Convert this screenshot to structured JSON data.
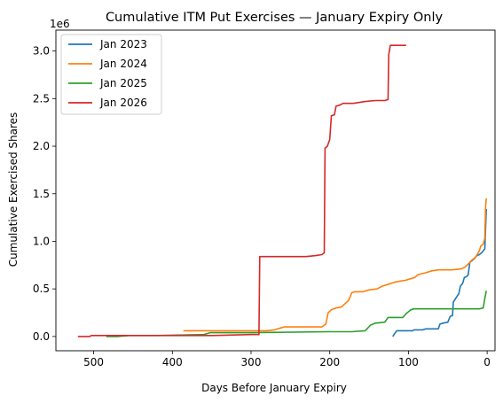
{
  "chart_data": {
    "type": "line",
    "title": "Cumulative ITM Put Exercises — January Expiry Only",
    "xlabel": "Days Before January Expiry",
    "ylabel": "Cumulative Exercised Shares",
    "offset_label": "1e6",
    "x_inverted": true,
    "xlim": [
      548,
      -10
    ],
    "ylim": [
      -0.15,
      3.22
    ],
    "y_multiplier": 1000000,
    "grid": false,
    "legend_position": "top-left",
    "x_ticks": [
      500,
      400,
      300,
      200,
      100,
      0
    ],
    "x_tick_labels": [
      "500",
      "400",
      "300",
      "200",
      "100",
      "0"
    ],
    "y_ticks": [
      0.0,
      0.5,
      1.0,
      1.5,
      2.0,
      2.5,
      3.0
    ],
    "y_tick_labels": [
      "0.0",
      "0.5",
      "1.0",
      "1.5",
      "2.0",
      "2.5",
      "3.0"
    ],
    "series": [
      {
        "name": "Jan 2023",
        "color": "#1f77b4",
        "points": [
          [
            120,
            0.0
          ],
          [
            115,
            0.06
          ],
          [
            95,
            0.06
          ],
          [
            93,
            0.07
          ],
          [
            82,
            0.07
          ],
          [
            78,
            0.08
          ],
          [
            62,
            0.08
          ],
          [
            60,
            0.13
          ],
          [
            56,
            0.14
          ],
          [
            50,
            0.15
          ],
          [
            47,
            0.21
          ],
          [
            44,
            0.22
          ],
          [
            43,
            0.36
          ],
          [
            40,
            0.4
          ],
          [
            36,
            0.45
          ],
          [
            34,
            0.53
          ],
          [
            31,
            0.56
          ],
          [
            29,
            0.62
          ],
          [
            26,
            0.63
          ],
          [
            24,
            0.65
          ],
          [
            22,
            0.78
          ],
          [
            19,
            0.8
          ],
          [
            16,
            0.82
          ],
          [
            13,
            0.85
          ],
          [
            10,
            0.86
          ],
          [
            7,
            0.88
          ],
          [
            5,
            0.9
          ],
          [
            3,
            0.92
          ],
          [
            2,
            1.15
          ],
          [
            1,
            1.34
          ]
        ]
      },
      {
        "name": "Jan 2024",
        "color": "#ff7f0e",
        "points": [
          [
            386,
            0.06
          ],
          [
            370,
            0.06
          ],
          [
            350,
            0.06
          ],
          [
            300,
            0.06
          ],
          [
            280,
            0.06
          ],
          [
            270,
            0.07
          ],
          [
            262,
            0.09
          ],
          [
            258,
            0.1
          ],
          [
            250,
            0.1
          ],
          [
            230,
            0.1
          ],
          [
            210,
            0.1
          ],
          [
            205,
            0.13
          ],
          [
            202,
            0.25
          ],
          [
            198,
            0.28
          ],
          [
            192,
            0.3
          ],
          [
            185,
            0.31
          ],
          [
            176,
            0.38
          ],
          [
            172,
            0.46
          ],
          [
            168,
            0.47
          ],
          [
            158,
            0.47
          ],
          [
            150,
            0.49
          ],
          [
            140,
            0.5
          ],
          [
            133,
            0.53
          ],
          [
            125,
            0.55
          ],
          [
            118,
            0.57
          ],
          [
            112,
            0.58
          ],
          [
            104,
            0.59
          ],
          [
            92,
            0.62
          ],
          [
            88,
            0.65
          ],
          [
            78,
            0.67
          ],
          [
            70,
            0.69
          ],
          [
            62,
            0.7
          ],
          [
            45,
            0.7
          ],
          [
            33,
            0.71
          ],
          [
            28,
            0.73
          ],
          [
            23,
            0.77
          ],
          [
            20,
            0.8
          ],
          [
            15,
            0.83
          ],
          [
            12,
            0.87
          ],
          [
            10,
            0.9
          ],
          [
            8,
            0.95
          ],
          [
            5,
            0.97
          ],
          [
            3,
            1.03
          ],
          [
            2,
            1.37
          ],
          [
            1,
            1.45
          ]
        ]
      },
      {
        "name": "Jan 2025",
        "color": "#2ca02c",
        "points": [
          [
            484,
            0.0
          ],
          [
            470,
            0.0
          ],
          [
            455,
            0.01
          ],
          [
            420,
            0.01
          ],
          [
            360,
            0.02
          ],
          [
            352,
            0.04
          ],
          [
            300,
            0.04
          ],
          [
            200,
            0.05
          ],
          [
            172,
            0.05
          ],
          [
            155,
            0.06
          ],
          [
            148,
            0.12
          ],
          [
            142,
            0.14
          ],
          [
            130,
            0.15
          ],
          [
            126,
            0.2
          ],
          [
            118,
            0.2
          ],
          [
            107,
            0.2
          ],
          [
            103,
            0.24
          ],
          [
            97,
            0.28
          ],
          [
            93,
            0.29
          ],
          [
            60,
            0.29
          ],
          [
            30,
            0.29
          ],
          [
            10,
            0.29
          ],
          [
            5,
            0.3
          ],
          [
            3,
            0.4
          ],
          [
            2,
            0.44
          ],
          [
            1,
            0.48
          ]
        ]
      },
      {
        "name": "Jan 2026",
        "color": "#d62728",
        "points": [
          [
            520,
            0.0
          ],
          [
            505,
            0.0
          ],
          [
            503,
            0.01
          ],
          [
            460,
            0.01
          ],
          [
            400,
            0.01
          ],
          [
            350,
            0.01
          ],
          [
            300,
            0.02
          ],
          [
            290,
            0.02
          ],
          [
            289,
            0.84
          ],
          [
            260,
            0.84
          ],
          [
            230,
            0.84
          ],
          [
            218,
            0.85
          ],
          [
            210,
            0.86
          ],
          [
            207,
            0.88
          ],
          [
            206,
            1.98
          ],
          [
            203,
            2.0
          ],
          [
            200,
            2.07
          ],
          [
            198,
            2.32
          ],
          [
            194,
            2.33
          ],
          [
            192,
            2.42
          ],
          [
            188,
            2.43
          ],
          [
            183,
            2.45
          ],
          [
            170,
            2.45
          ],
          [
            162,
            2.46
          ],
          [
            155,
            2.47
          ],
          [
            142,
            2.48
          ],
          [
            130,
            2.48
          ],
          [
            126,
            2.49
          ],
          [
            125,
            2.96
          ],
          [
            123,
            3.06
          ],
          [
            112,
            3.06
          ],
          [
            103,
            3.06
          ]
        ]
      }
    ]
  }
}
